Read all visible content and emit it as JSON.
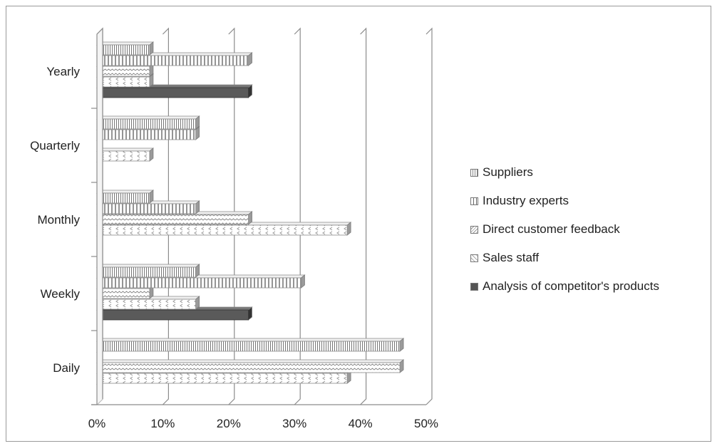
{
  "chart_data": {
    "type": "bar",
    "orientation": "horizontal",
    "categories": [
      "Daily",
      "Weekly",
      "Monthly",
      "Quarterly",
      "Yearly"
    ],
    "series": [
      {
        "name": "Analysis of competitor's products",
        "values": [
          0,
          23,
          0,
          0,
          23
        ]
      },
      {
        "name": "Sales staff",
        "values": [
          38,
          15,
          38,
          8,
          8
        ]
      },
      {
        "name": "Direct customer feedback",
        "values": [
          46,
          8,
          23,
          0,
          8
        ]
      },
      {
        "name": "Industry experts",
        "values": [
          0,
          31,
          15,
          15,
          23
        ]
      },
      {
        "name": "Suppliers",
        "values": [
          46,
          15,
          8,
          15,
          8
        ]
      }
    ],
    "xlim": [
      0,
      50
    ],
    "xticks": [
      "0%",
      "10%",
      "20%",
      "30%",
      "40%",
      "50%"
    ],
    "legend_position": "right",
    "grid": true,
    "colors": {
      "Analysis of competitor's products": "#555555",
      "Sales staff": "#e6e6e6",
      "Direct customer feedback": "#cfcfcf",
      "Industry experts": "#bdbdbd",
      "Suppliers": "#d9d9d9"
    }
  },
  "legend": [
    {
      "label": "Suppliers",
      "swatch_color": "#d9d9d9"
    },
    {
      "label": "Industry experts",
      "swatch_color": "#bdbdbd"
    },
    {
      "label": "Direct customer feedback",
      "swatch_color": "#cfcfcf"
    },
    {
      "label": "Sales staff",
      "swatch_color": "#e6e6e6"
    },
    {
      "label": "Analysis of competitor's products",
      "swatch_color": "#555555"
    }
  ]
}
